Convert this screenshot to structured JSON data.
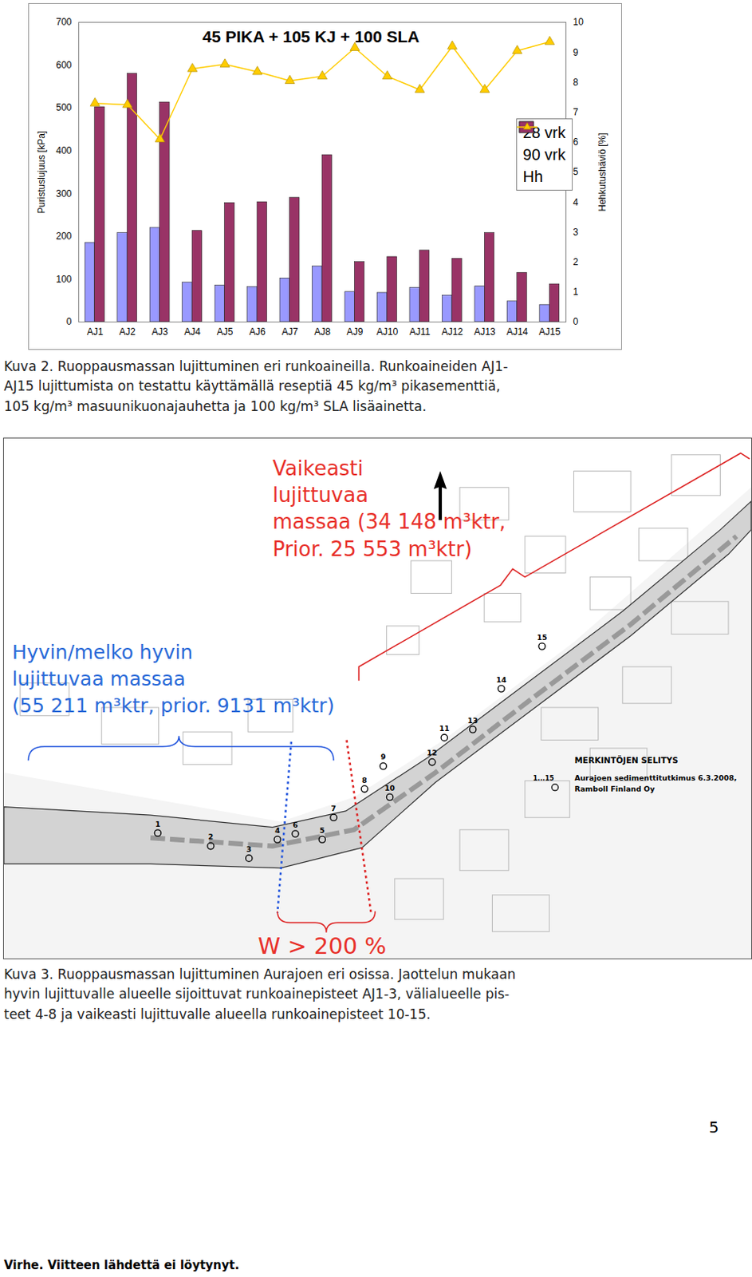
{
  "chart_data": {
    "type": "bar",
    "title": "45 PIKA + 105 KJ + 100 SLA",
    "categories": [
      "AJ1",
      "AJ2",
      "AJ3",
      "AJ4",
      "AJ5",
      "AJ6",
      "AJ7",
      "AJ8",
      "AJ9",
      "AJ10",
      "AJ11",
      "AJ12",
      "AJ13",
      "AJ14",
      "AJ15"
    ],
    "series": [
      {
        "name": "28 vrk",
        "type": "bar",
        "color": "#9999ff",
        "values": [
          185,
          208,
          220,
          92,
          85,
          82,
          102,
          130,
          70,
          68,
          80,
          62,
          83,
          48,
          40
        ]
      },
      {
        "name": "90 vrk",
        "type": "bar",
        "color": "#993366",
        "values": [
          502,
          580,
          513,
          213,
          278,
          280,
          290,
          390,
          140,
          152,
          167,
          148,
          208,
          115,
          88
        ]
      },
      {
        "name": "Hh",
        "type": "line",
        "axis": "y2",
        "color": "#ffcc00",
        "marker": "triangle",
        "line_style": "solid",
        "values": [
          7.3,
          7.25,
          6.1,
          8.45,
          8.6,
          8.35,
          8.05,
          8.2,
          9.15,
          8.2,
          7.75,
          9.2,
          7.75,
          9.05,
          9.35
        ]
      }
    ],
    "ylabel": "Puristuslujuus [kPa]",
    "ylim": [
      0,
      700
    ],
    "yticks": [
      0,
      100,
      200,
      300,
      400,
      500,
      600,
      700
    ],
    "y2label": "Hehkutushäviö [%]",
    "y2lim": [
      0,
      10
    ],
    "y2ticks": [
      0,
      1,
      2,
      3,
      4,
      5,
      6,
      7,
      8,
      9,
      10
    ],
    "legend": "upper right",
    "grid": false
  },
  "figure_2_caption": [
    "Kuva 2. Ruoppausmassan lujittuminen eri runkoaineilla. Runkoaineiden AJ1-",
    "AJ15 lujittumista on testattu käyttämällä reseptiä 45 kg/m³ pikasementtiä,",
    "105 kg/m³ masuunikuonajauhetta ja 100 kg/m³ SLA lisäainetta."
  ],
  "map": {
    "hard_area": [
      "Vaikeasti",
      "lujittuvaa",
      "massaa (34 148 m³ktr,",
      "Prior. 25 553 m³ktr)"
    ],
    "good_area": [
      "Hyvin/melko hyvin",
      "lujittuvaa massaa",
      "(55 211 m³ktr, prior. 9131 m³ktr)"
    ],
    "water_content": "W > 200 %",
    "legend_title": "MERKINTÖJEN SELITYS",
    "legend_symbol": "1...15",
    "legend_text": [
      "Aurajoen sedimenttitutkimus 6.3.2008,",
      "Ramboll Finland Oy"
    ],
    "points": [
      "1",
      "2",
      "3",
      "4",
      "5",
      "6",
      "7",
      "8",
      "9",
      "10",
      "11",
      "12",
      "13",
      "14",
      "15"
    ]
  },
  "figure_3_caption": [
    "Kuva 3. Ruoppausmassan lujittuminen Aurajoen eri osissa. Jaottelun mukaan",
    "hyvin lujittuvalle alueelle sijoittuvat runkoainepisteet AJ1-3, välialueelle pis-",
    "teet 4-8 ja vaikeasti lujittuvalle alueella runkoainepisteet 10-15."
  ],
  "page_number": "5",
  "footer": "Virhe. Viitteen lähdettä ei löytynyt."
}
